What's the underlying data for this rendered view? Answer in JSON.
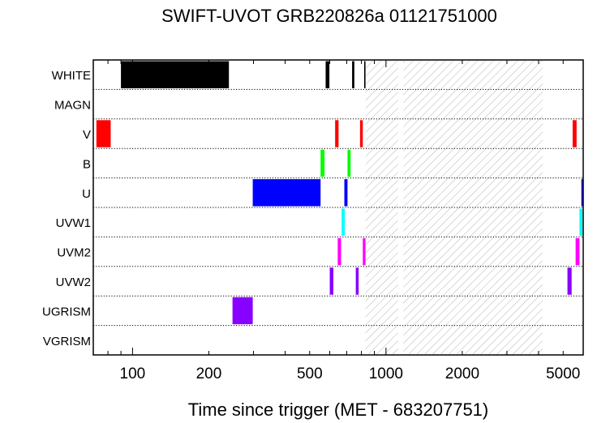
{
  "chart_data": {
    "type": "timeline",
    "title": "SWIFT-UVOT GRB220826a 01121751000",
    "xlabel": "Time since trigger (MET - 683207751)",
    "xscale": "log",
    "xlim": [
      70,
      6000
    ],
    "xticks": [
      {
        "value": 100,
        "label": "100"
      },
      {
        "value": 200,
        "label": "200"
      },
      {
        "value": 500,
        "label": "500"
      },
      {
        "value": 1000,
        "label": "1000"
      },
      {
        "value": 2000,
        "label": "2000"
      },
      {
        "value": 5000,
        "label": "5000"
      }
    ],
    "rows": [
      {
        "label": "WHITE",
        "color": "#000000",
        "segments": [
          [
            90,
            240
          ],
          [
            578,
            598
          ],
          [
            735,
            750
          ],
          [
            820,
            830
          ]
        ]
      },
      {
        "label": "MAGN",
        "color": "#000000",
        "segments": []
      },
      {
        "label": "V",
        "color": "#ff0000",
        "segments": [
          [
            72,
            82
          ],
          [
            630,
            650
          ],
          [
            790,
            810
          ],
          [
            5450,
            5650
          ]
        ]
      },
      {
        "label": "B",
        "color": "#00ff00",
        "segments": [
          [
            552,
            572
          ],
          [
            705,
            725
          ]
        ]
      },
      {
        "label": "U",
        "color": "#0000ff",
        "segments": [
          [
            298,
            552
          ],
          [
            685,
            705
          ],
          [
            5900,
            6000
          ]
        ]
      },
      {
        "label": "UVW1",
        "color": "#00ffff",
        "segments": [
          [
            668,
            688
          ],
          [
            5800,
            5950
          ]
        ]
      },
      {
        "label": "UVM2",
        "color": "#ff00ff",
        "segments": [
          [
            645,
            665
          ],
          [
            810,
            830
          ],
          [
            5600,
            5800
          ]
        ]
      },
      {
        "label": "UVW2",
        "color": "#8800ff",
        "segments": [
          [
            600,
            620
          ],
          [
            760,
            780
          ],
          [
            5200,
            5400
          ]
        ]
      },
      {
        "label": "UGRISM",
        "color": "#8800ff",
        "segments": [
          [
            248,
            298
          ]
        ]
      },
      {
        "label": "VGRISM",
        "color": "#000000",
        "segments": []
      }
    ],
    "hatched_intervals": [
      [
        830,
        1115
      ],
      [
        1170,
        4150
      ]
    ]
  }
}
